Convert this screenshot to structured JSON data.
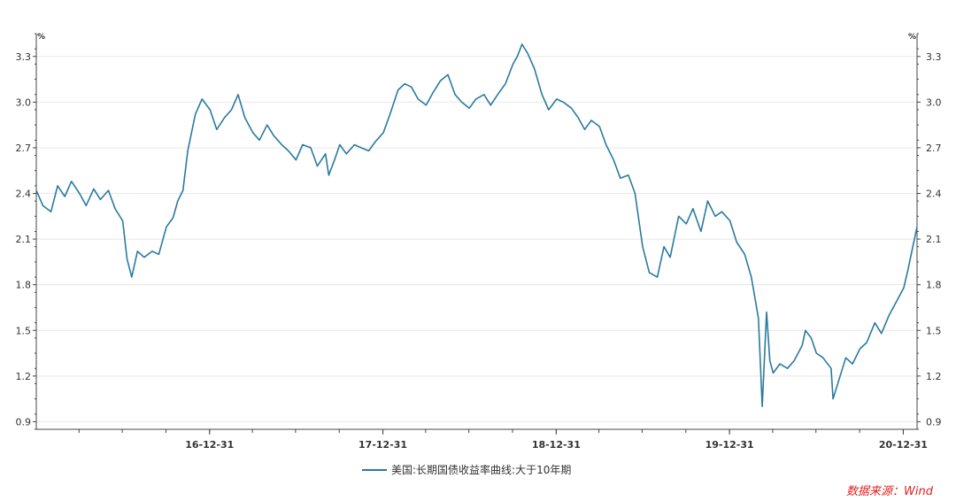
{
  "chart_data": {
    "type": "line",
    "y_unit": "%",
    "ylim": [
      0.85,
      3.45
    ],
    "y_ticks": [
      "0.9",
      "1.2",
      "1.5",
      "1.8",
      "2.1",
      "2.4",
      "2.7",
      "3.0",
      "3.3"
    ],
    "xlim": [
      "2016-01-01",
      "2021-01-29"
    ],
    "x_ticks": [
      {
        "date": "2016-12-31",
        "label": "16-12-31"
      },
      {
        "date": "2017-12-31",
        "label": "17-12-31"
      },
      {
        "date": "2018-12-31",
        "label": "18-12-31"
      },
      {
        "date": "2019-12-31",
        "label": "19-12-31"
      },
      {
        "date": "2020-12-31",
        "label": "20-12-31"
      }
    ],
    "grid": true,
    "legend_position": "bottom",
    "series": [
      {
        "name": "美国:长期国债收益率曲线:大于10年期",
        "color": "#2a7aa0",
        "x": [
          "2016-01-01",
          "2016-01-15",
          "2016-02-01",
          "2016-02-15",
          "2016-03-01",
          "2016-03-15",
          "2016-04-01",
          "2016-04-15",
          "2016-05-01",
          "2016-05-15",
          "2016-06-01",
          "2016-06-15",
          "2016-07-01",
          "2016-07-10",
          "2016-07-20",
          "2016-08-01",
          "2016-08-15",
          "2016-09-01",
          "2016-09-15",
          "2016-10-01",
          "2016-10-15",
          "2016-10-25",
          "2016-11-05",
          "2016-11-15",
          "2016-12-01",
          "2016-12-15",
          "2017-01-01",
          "2017-01-15",
          "2017-02-01",
          "2017-02-15",
          "2017-03-01",
          "2017-03-15",
          "2017-04-01",
          "2017-04-15",
          "2017-05-01",
          "2017-05-15",
          "2017-06-01",
          "2017-06-15",
          "2017-07-01",
          "2017-07-15",
          "2017-08-01",
          "2017-08-15",
          "2017-09-01",
          "2017-09-08",
          "2017-09-20",
          "2017-10-01",
          "2017-10-15",
          "2017-11-01",
          "2017-11-15",
          "2017-12-01",
          "2017-12-15",
          "2018-01-01",
          "2018-01-15",
          "2018-02-01",
          "2018-02-15",
          "2018-03-01",
          "2018-03-15",
          "2018-04-01",
          "2018-04-15",
          "2018-05-01",
          "2018-05-17",
          "2018-06-01",
          "2018-06-15",
          "2018-07-01",
          "2018-07-15",
          "2018-08-01",
          "2018-08-15",
          "2018-09-01",
          "2018-09-15",
          "2018-10-01",
          "2018-10-10",
          "2018-10-20",
          "2018-11-01",
          "2018-11-15",
          "2018-12-01",
          "2018-12-15",
          "2019-01-01",
          "2019-01-15",
          "2019-02-01",
          "2019-02-15",
          "2019-03-01",
          "2019-03-15",
          "2019-04-01",
          "2019-04-15",
          "2019-05-01",
          "2019-05-15",
          "2019-06-01",
          "2019-06-15",
          "2019-07-01",
          "2019-07-15",
          "2019-08-01",
          "2019-08-15",
          "2019-08-28",
          "2019-09-15",
          "2019-10-01",
          "2019-10-15",
          "2019-11-01",
          "2019-11-15",
          "2019-12-01",
          "2019-12-15",
          "2020-01-01",
          "2020-01-15",
          "2020-02-01",
          "2020-02-15",
          "2020-03-01",
          "2020-03-09",
          "2020-03-18",
          "2020-03-25",
          "2020-04-01",
          "2020-04-15",
          "2020-05-01",
          "2020-05-15",
          "2020-06-01",
          "2020-06-08",
          "2020-06-20",
          "2020-07-01",
          "2020-07-15",
          "2020-08-01",
          "2020-08-05",
          "2020-08-20",
          "2020-09-01",
          "2020-09-15",
          "2020-10-01",
          "2020-10-15",
          "2020-11-01",
          "2020-11-15",
          "2020-12-01",
          "2020-12-15",
          "2021-01-01",
          "2021-01-10",
          "2021-01-20",
          "2021-01-29"
        ],
        "y": [
          2.42,
          2.32,
          2.28,
          2.45,
          2.38,
          2.48,
          2.4,
          2.32,
          2.43,
          2.36,
          2.42,
          2.3,
          2.22,
          1.97,
          1.85,
          2.02,
          1.98,
          2.02,
          2.0,
          2.18,
          2.24,
          2.35,
          2.42,
          2.68,
          2.92,
          3.02,
          2.95,
          2.82,
          2.9,
          2.95,
          3.05,
          2.9,
          2.8,
          2.75,
          2.85,
          2.78,
          2.72,
          2.68,
          2.62,
          2.72,
          2.7,
          2.58,
          2.66,
          2.52,
          2.62,
          2.72,
          2.66,
          2.72,
          2.7,
          2.68,
          2.74,
          2.8,
          2.92,
          3.08,
          3.12,
          3.1,
          3.02,
          2.98,
          3.06,
          3.14,
          3.18,
          3.05,
          3.0,
          2.96,
          3.02,
          3.05,
          2.98,
          3.06,
          3.12,
          3.25,
          3.3,
          3.38,
          3.32,
          3.22,
          3.05,
          2.95,
          3.02,
          3.0,
          2.96,
          2.9,
          2.82,
          2.88,
          2.84,
          2.72,
          2.62,
          2.5,
          2.52,
          2.4,
          2.05,
          1.88,
          1.85,
          2.05,
          1.98,
          2.25,
          2.2,
          2.3,
          2.15,
          2.35,
          2.25,
          2.28,
          2.22,
          2.08,
          2.0,
          1.85,
          1.58,
          1.0,
          1.62,
          1.3,
          1.22,
          1.28,
          1.25,
          1.3,
          1.4,
          1.5,
          1.45,
          1.35,
          1.32,
          1.25,
          1.05,
          1.2,
          1.32,
          1.28,
          1.38,
          1.42,
          1.55,
          1.48,
          1.6,
          1.68,
          1.78,
          1.9,
          2.05,
          2.18
        ]
      }
    ]
  },
  "legend": {
    "label": "美国:长期国债收益率曲线:大于10年期"
  },
  "source": {
    "label": "数据来源：Wind"
  },
  "colors": {
    "line": "#2a7aa0",
    "grid": "#e8e8e8",
    "axis": "#444444",
    "source": "#e02020"
  }
}
